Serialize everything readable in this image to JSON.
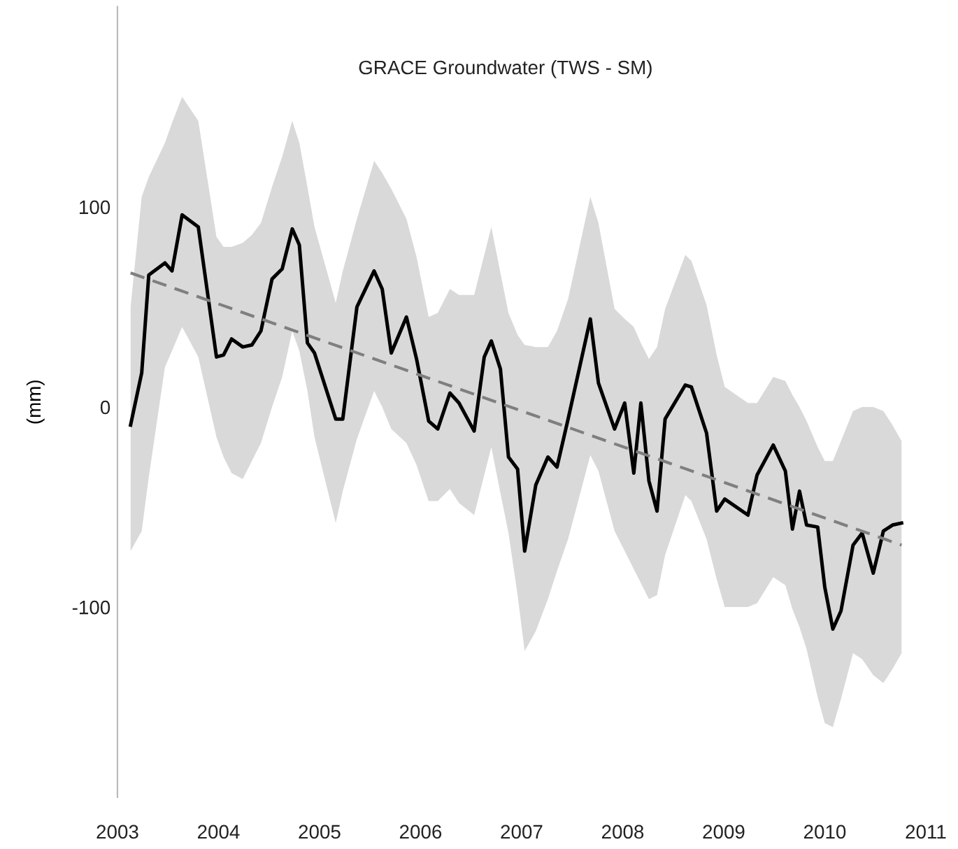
{
  "chart_data": {
    "type": "line",
    "title": "GRACE Groundwater (TWS - SM)",
    "ylabel": "(mm)",
    "xlim": [
      2003,
      2011
    ],
    "xticks": [
      2003,
      2004,
      2005,
      2006,
      2007,
      2008,
      2009,
      2010,
      2011
    ],
    "ylim": [
      -195,
      200
    ],
    "yticks": [
      -100,
      0,
      100
    ],
    "grid": false,
    "legend": false,
    "series": [
      {
        "color": "#000000",
        "line_style": "solid",
        "x": [
          2003.13,
          2003.24,
          2003.31,
          2003.47,
          2003.54,
          2003.64,
          2003.8,
          2003.98,
          2004.05,
          2004.13,
          2004.24,
          2004.33,
          2004.42,
          2004.53,
          2004.63,
          2004.73,
          2004.8,
          2004.88,
          2004.95,
          2005.16,
          2005.23,
          2005.37,
          2005.54,
          2005.62,
          2005.71,
          2005.86,
          2005.96,
          2006.08,
          2006.17,
          2006.29,
          2006.38,
          2006.53,
          2006.63,
          2006.7,
          2006.79,
          2006.87,
          2006.96,
          2007.03,
          2007.14,
          2007.26,
          2007.35,
          2007.46,
          2007.68,
          2007.76,
          2007.92,
          2008.02,
          2008.11,
          2008.18,
          2008.26,
          2008.34,
          2008.42,
          2008.62,
          2008.68,
          2008.83,
          2008.93,
          2009.01,
          2009.24,
          2009.33,
          2009.49,
          2009.61,
          2009.68,
          2009.75,
          2009.82,
          2009.93,
          2010.0,
          2010.08,
          2010.16,
          2010.28,
          2010.37,
          2010.48,
          2010.58,
          2010.67,
          2010.76
        ],
        "values": [
          -9,
          17,
          66,
          72,
          68,
          96,
          90,
          25,
          26,
          34,
          30,
          31,
          38,
          64,
          69,
          89,
          81,
          32,
          27,
          -6,
          -6,
          50,
          68,
          59,
          27,
          45,
          24,
          -7,
          -11,
          7,
          2,
          -12,
          25,
          33,
          19,
          -25,
          -31,
          -72,
          -39,
          -25,
          -30,
          -6,
          44,
          12,
          -11,
          2,
          -33,
          2,
          -37,
          -52,
          -6,
          11,
          10,
          -13,
          -52,
          -46,
          -54,
          -34,
          -19,
          -32,
          -61,
          -42,
          -59,
          -60,
          -90,
          -111,
          -102,
          -69,
          -63,
          -83,
          -62,
          -59,
          -58
        ],
        "upper": [
          50,
          105,
          115,
          132,
          142,
          155,
          143,
          85,
          80,
          80,
          82,
          86,
          92,
          110,
          125,
          143,
          132,
          110,
          90,
          52,
          68,
          94,
          123,
          117,
          109,
          94,
          75,
          45,
          47,
          59,
          56,
          56,
          76,
          90,
          67,
          47,
          36,
          31,
          30,
          30,
          38,
          54,
          105,
          92,
          49,
          44,
          40,
          32,
          24,
          30,
          49,
          76,
          73,
          51,
          26,
          10,
          2,
          2,
          15,
          13,
          6,
          0,
          -7,
          -20,
          -27,
          -27,
          -17,
          -2,
          0,
          0,
          -2,
          -9,
          -17
        ],
        "lower": [
          -72,
          -62,
          -35,
          20,
          28,
          40,
          25,
          -15,
          -25,
          -33,
          -36,
          -27,
          -18,
          0,
          15,
          38,
          28,
          8,
          -15,
          -58,
          -42,
          -16,
          8,
          0,
          -11,
          -18,
          -29,
          -47,
          -47,
          -41,
          -48,
          -54,
          -34,
          -20,
          -43,
          -63,
          -94,
          -122,
          -112,
          -96,
          -82,
          -66,
          -24,
          -32,
          -62,
          -72,
          -81,
          -88,
          -96,
          -94,
          -74,
          -44,
          -47,
          -66,
          -86,
          -100,
          -100,
          -98,
          -85,
          -89,
          -101,
          -110,
          -121,
          -145,
          -158,
          -160,
          -146,
          -123,
          -126,
          -134,
          -138,
          -131,
          -123
        ]
      },
      {
        "color": "#7f7f7f",
        "line_style": "dashed",
        "x": [
          2003.13,
          2010.76
        ],
        "values": [
          67,
          -69
        ]
      }
    ]
  }
}
